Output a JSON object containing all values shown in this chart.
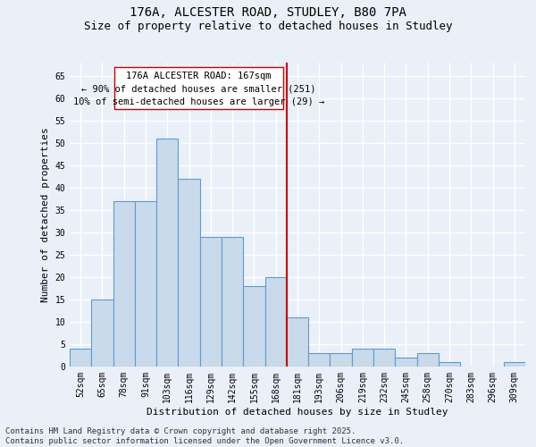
{
  "title_line1": "176A, ALCESTER ROAD, STUDLEY, B80 7PA",
  "title_line2": "Size of property relative to detached houses in Studley",
  "xlabel": "Distribution of detached houses by size in Studley",
  "ylabel": "Number of detached properties",
  "categories": [
    "52sqm",
    "65sqm",
    "78sqm",
    "91sqm",
    "103sqm",
    "116sqm",
    "129sqm",
    "142sqm",
    "155sqm",
    "168sqm",
    "181sqm",
    "193sqm",
    "206sqm",
    "219sqm",
    "232sqm",
    "245sqm",
    "258sqm",
    "270sqm",
    "283sqm",
    "296sqm",
    "309sqm"
  ],
  "values": [
    4,
    15,
    37,
    37,
    51,
    42,
    29,
    29,
    18,
    20,
    11,
    3,
    3,
    4,
    4,
    2,
    3,
    1,
    0,
    0,
    1
  ],
  "bar_color": "#c9daea",
  "bar_edge_color": "#5b9bd5",
  "bar_edge_width": 0.8,
  "vline_color": "#cc0000",
  "vline_label_title": "176A ALCESTER ROAD: 167sqm",
  "vline_label_line2": "← 90% of detached houses are smaller (251)",
  "vline_label_line3": "10% of semi-detached houses are larger (29) →",
  "annotation_box_color": "#cc0000",
  "annotation_fill": "#ffffff",
  "ylim": [
    0,
    68
  ],
  "yticks": [
    0,
    5,
    10,
    15,
    20,
    25,
    30,
    35,
    40,
    45,
    50,
    55,
    60,
    65
  ],
  "background_color": "#eaf0f8",
  "grid_color": "#ffffff",
  "footer_line1": "Contains HM Land Registry data © Crown copyright and database right 2025.",
  "footer_line2": "Contains public sector information licensed under the Open Government Licence v3.0.",
  "title_fontsize": 10,
  "subtitle_fontsize": 9,
  "axis_label_fontsize": 8,
  "tick_fontsize": 7,
  "annotation_fontsize": 7.5,
  "footer_fontsize": 6.5
}
